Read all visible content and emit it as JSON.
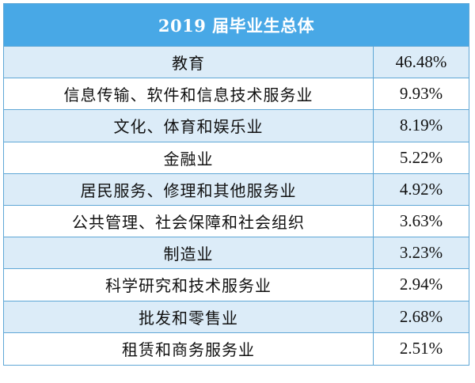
{
  "table": {
    "title": "2019 届毕业生总体",
    "rows": [
      {
        "industry": "教育",
        "percent": "46.48%"
      },
      {
        "industry": "信息传输、软件和信息技术服务业",
        "percent": "9.93%"
      },
      {
        "industry": "文化、体育和娱乐业",
        "percent": "8.19%"
      },
      {
        "industry": "金融业",
        "percent": "5.22%"
      },
      {
        "industry": "居民服务、修理和其他服务业",
        "percent": "4.92%"
      },
      {
        "industry": "公共管理、社会保障和社会组织",
        "percent": "3.63%"
      },
      {
        "industry": "制造业",
        "percent": "3.23%"
      },
      {
        "industry": "科学研究和技术服务业",
        "percent": "2.94%"
      },
      {
        "industry": "批发和零售业",
        "percent": "2.68%"
      },
      {
        "industry": "租赁和商务服务业",
        "percent": "2.51%"
      }
    ]
  },
  "colors": {
    "header_bg": "#48a8e6",
    "alt_row_bg": "#dcecf8",
    "border": "#5fa7d6"
  }
}
